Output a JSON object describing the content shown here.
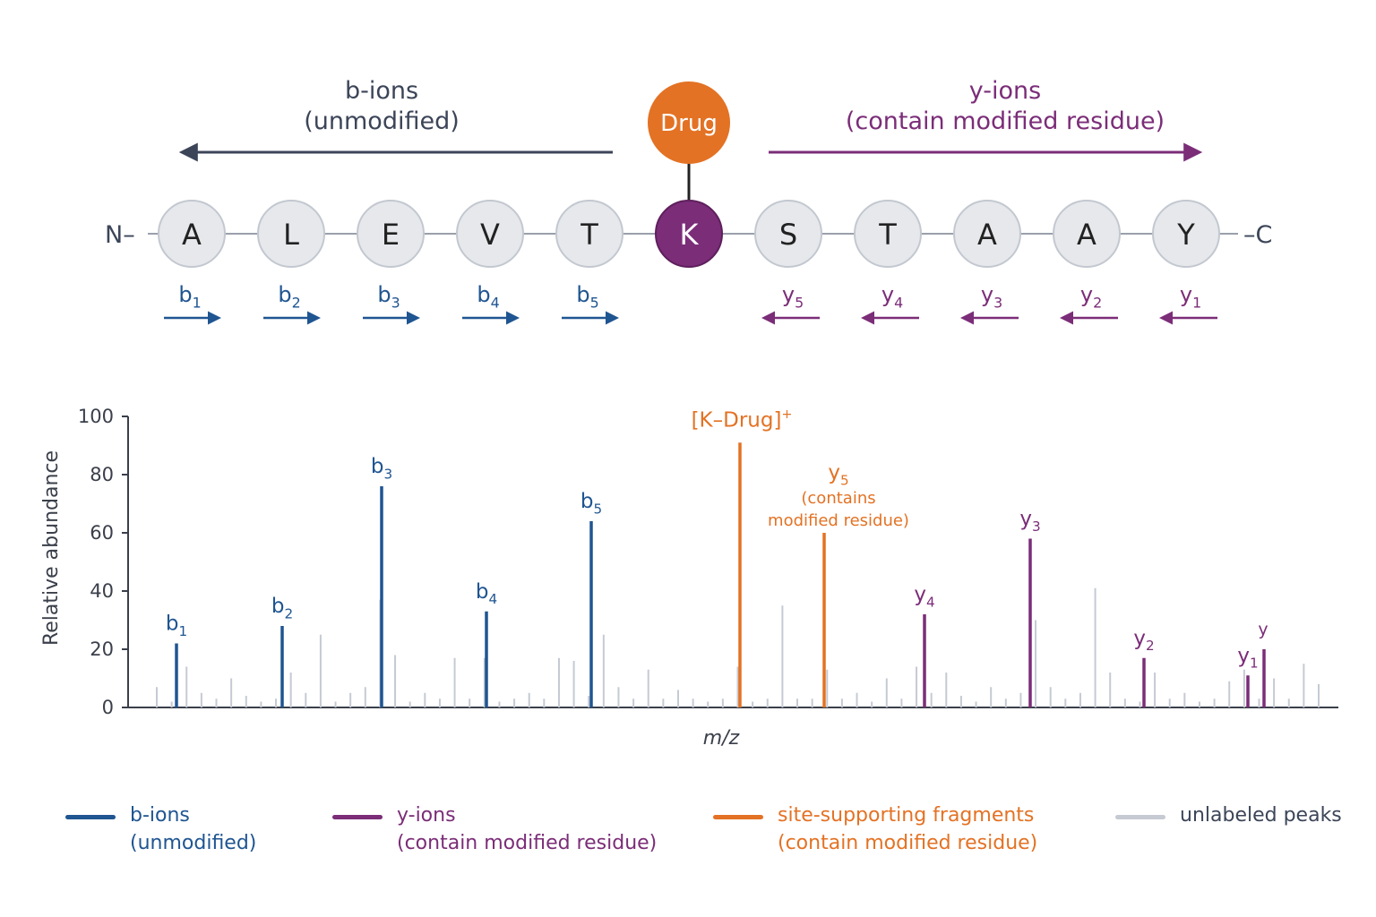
{
  "colors": {
    "b_ion": "#1f5591",
    "y_ion": "#7b2d78",
    "site": "#e37224",
    "unlabeled": "#c5cad3",
    "residue_fill": "#e6e8ec",
    "residue_stroke": "#c3c8d0",
    "text_dark": "#3c4558",
    "axis": "#3a3f4a"
  },
  "schematic": {
    "b_header": [
      "b-ions",
      "(unmodified)"
    ],
    "y_header": [
      "y-ions",
      "(contain modified residue)"
    ],
    "n_term": "N–",
    "c_term": "–C",
    "drug_label": "Drug",
    "residues": [
      "A",
      "L",
      "E",
      "V",
      "T",
      "K",
      "S",
      "T",
      "A",
      "A",
      "Y"
    ],
    "modified_residue_index": 5,
    "b_fragments": [
      {
        "letter": "b",
        "sub": "1"
      },
      {
        "letter": "b",
        "sub": "2"
      },
      {
        "letter": "b",
        "sub": "3"
      },
      {
        "letter": "b",
        "sub": "4"
      },
      {
        "letter": "b",
        "sub": "5"
      }
    ],
    "y_fragments": [
      {
        "letter": "y",
        "sub": "5"
      },
      {
        "letter": "y",
        "sub": "4"
      },
      {
        "letter": "y",
        "sub": "3"
      },
      {
        "letter": "y",
        "sub": "2"
      },
      {
        "letter": "y",
        "sub": "1"
      }
    ]
  },
  "chart_data": {
    "type": "bar",
    "xlabel": "m/z",
    "ylabel": "Relative abundance",
    "ylim": [
      0,
      100
    ],
    "yticks": [
      0,
      20,
      40,
      60,
      80,
      100
    ],
    "labeled_peaks": [
      {
        "ion": "b",
        "sub": "1",
        "value": 22,
        "kind": "b"
      },
      {
        "ion": "b",
        "sub": "2",
        "value": 28,
        "kind": "b"
      },
      {
        "ion": "b",
        "sub": "3",
        "value": 76,
        "kind": "b"
      },
      {
        "ion": "b",
        "sub": "4",
        "value": 33,
        "kind": "b"
      },
      {
        "ion": "b",
        "sub": "5",
        "value": 64,
        "kind": "b"
      },
      {
        "ion": "[K–Drug]",
        "sup": "+",
        "value": 91,
        "kind": "site"
      },
      {
        "ion": "y",
        "sub": "5",
        "note": [
          "(contains",
          "modified residue)"
        ],
        "value": 60,
        "kind": "site"
      },
      {
        "ion": "y",
        "sub": "4",
        "value": 32,
        "kind": "y"
      },
      {
        "ion": "y",
        "sub": "3",
        "value": 58,
        "kind": "y"
      },
      {
        "ion": "y",
        "sub": "2",
        "value": 17,
        "kind": "y"
      },
      {
        "ion": "y",
        "sub": "1",
        "value": 11,
        "kind": "y"
      },
      {
        "ion": "y",
        "value": 20,
        "kind": "y"
      }
    ],
    "unlabeled_values": [
      7,
      2,
      14,
      5,
      3,
      10,
      4,
      2,
      3,
      12,
      5,
      25,
      2,
      5,
      7,
      37,
      18,
      2,
      5,
      3,
      17,
      3,
      17,
      2,
      3,
      5,
      3,
      17,
      16,
      4,
      25,
      7,
      3,
      13,
      3,
      6,
      3,
      2,
      3,
      14,
      2,
      3,
      35,
      3,
      3,
      13,
      3,
      5,
      2,
      10,
      3,
      14,
      5,
      12,
      4,
      2,
      7,
      3,
      5,
      30,
      7,
      3,
      5,
      41,
      12,
      3,
      2,
      12,
      3,
      5,
      2,
      3,
      9,
      13,
      3,
      10,
      3,
      15,
      8
    ]
  },
  "legend": [
    {
      "kind": "b",
      "lines": [
        "b-ions",
        "(unmodified)"
      ]
    },
    {
      "kind": "y",
      "lines": [
        "y-ions",
        "(contain modified residue)"
      ]
    },
    {
      "kind": "site",
      "lines": [
        "site-supporting fragments",
        "(contain modified residue)"
      ]
    },
    {
      "kind": "unlabeled",
      "lines": [
        "unlabeled peaks"
      ]
    }
  ]
}
